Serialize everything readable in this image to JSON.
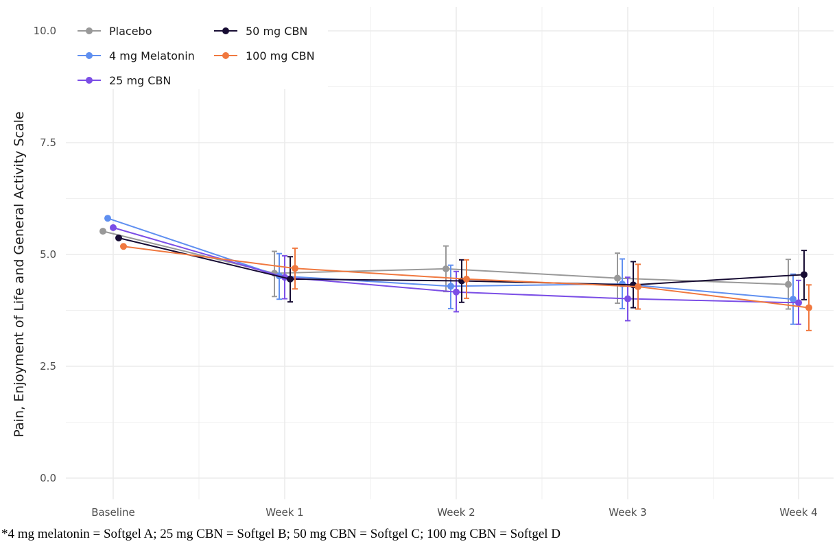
{
  "chart_data": {
    "type": "line",
    "title": "",
    "xlabel": "",
    "ylabel": "Pain, Enjoyment of Life and General Activity Scale",
    "categories": [
      "Baseline",
      "Week 1",
      "Week 2",
      "Week 3",
      "Week 4"
    ],
    "ylim": [
      -0.5,
      10.5
    ],
    "yticks": [
      "0.0",
      "2.5",
      "5.0",
      "7.5",
      "10.0"
    ],
    "ytick_values": [
      0,
      2.5,
      5,
      7.5,
      10
    ],
    "grid": true,
    "legend_position": "top-left",
    "error_bars": true,
    "series": [
      {
        "name": "Placebo",
        "color": "#999999",
        "values": [
          5.52,
          4.58,
          4.68,
          4.47,
          4.33
        ],
        "lower": [
          null,
          4.06,
          4.17,
          3.91,
          3.78
        ],
        "upper": [
          null,
          5.07,
          5.19,
          5.03,
          4.89
        ]
      },
      {
        "name": "4 mg Melatonin",
        "color": "#5f8ff0",
        "values": [
          5.81,
          4.52,
          4.29,
          4.34,
          4.0
        ],
        "lower": [
          null,
          4.0,
          3.79,
          3.79,
          3.44
        ],
        "upper": [
          null,
          5.02,
          4.76,
          4.9,
          4.56
        ]
      },
      {
        "name": "25 mg CBN",
        "color": "#7b4ee6",
        "values": [
          5.6,
          4.49,
          4.16,
          4.01,
          3.92
        ],
        "lower": [
          null,
          4.01,
          3.72,
          3.52,
          3.44
        ],
        "upper": [
          null,
          4.97,
          4.62,
          4.49,
          4.42
        ]
      },
      {
        "name": "50 mg CBN",
        "color": "#170c33",
        "values": [
          5.37,
          4.45,
          4.41,
          4.32,
          4.55
        ],
        "lower": [
          null,
          3.94,
          3.93,
          3.81,
          3.99
        ],
        "upper": [
          null,
          4.95,
          4.88,
          4.84,
          5.09
        ]
      },
      {
        "name": "100 mg CBN",
        "color": "#f0783f",
        "values": [
          5.18,
          4.69,
          4.45,
          4.28,
          3.81
        ],
        "lower": [
          null,
          4.23,
          4.02,
          3.78,
          3.3
        ],
        "upper": [
          null,
          5.14,
          4.88,
          4.78,
          4.32
        ]
      }
    ]
  },
  "footnote": "*4 mg melatonin = Softgel A; 25 mg CBN = Softgel B; 50 mg CBN = Softgel C; 100 mg CBN = Softgel D"
}
